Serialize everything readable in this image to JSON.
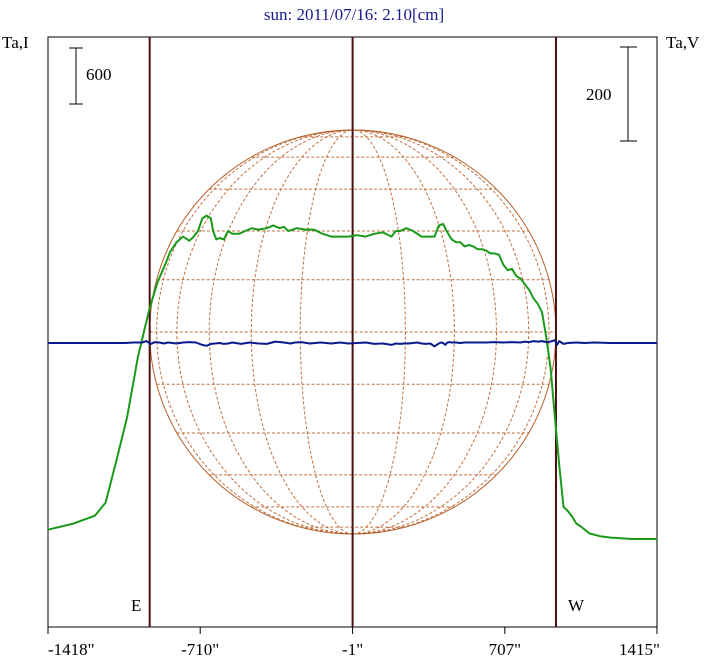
{
  "chart_data": {
    "type": "line",
    "title": "sun: 2011/07/16: 2.10[cm]",
    "ylabel_left": "Ta,I",
    "ylabel_right": "Ta,V",
    "scale_left_label": "600",
    "scale_left_value": 600,
    "scale_right_label": "200",
    "scale_right_value": 200,
    "limb_east_label": "E",
    "limb_west_label": "W",
    "xlim": [
      -1418,
      1415
    ],
    "x_ticks": [
      {
        "value": -1418,
        "label": "-1418\""
      },
      {
        "value": -710,
        "label": "-710\""
      },
      {
        "value": -1,
        "label": "-1\""
      },
      {
        "value": 707,
        "label": "707\""
      },
      {
        "value": 1415,
        "label": "1415\""
      }
    ],
    "vertical_lines_arcsec": [
      -945,
      -1,
      945
    ],
    "solar_radius_arcsec": 945,
    "colors": {
      "intensity": "#1a9a1a",
      "polarization": "#0a1a8c",
      "globe": "#b8602a",
      "markers": "#4a1010",
      "title": "#1a1a8c"
    },
    "series": [
      {
        "name": "Ta,I",
        "unit": "Ta",
        "x": [
          -1418,
          -1300,
          -1200,
          -1150,
          -1100,
          -1050,
          -1000,
          -970,
          -950,
          -930,
          -910,
          -890,
          -870,
          -850,
          -820,
          -790,
          -760,
          -740,
          -720,
          -700,
          -680,
          -660,
          -650,
          -635,
          -620,
          -600,
          -580,
          -560,
          -530,
          -500,
          -470,
          -440,
          -400,
          -370,
          -340,
          -320,
          -300,
          -260,
          -220,
          -180,
          -140,
          -100,
          -60,
          -20,
          20,
          60,
          100,
          140,
          180,
          200,
          220,
          250,
          280,
          320,
          360,
          380,
          400,
          420,
          440,
          460,
          480,
          500,
          520,
          540,
          560,
          580,
          600,
          620,
          640,
          660,
          680,
          700,
          720,
          740,
          760,
          780,
          800,
          820,
          840,
          860,
          880,
          900,
          920,
          940,
          960,
          980,
          1000,
          1020,
          1040,
          1060,
          1100,
          1150,
          1200,
          1300,
          1415
        ],
        "y": [
          -2000,
          -1935,
          -1850,
          -1710,
          -1260,
          -795,
          -150,
          135,
          330,
          490,
          640,
          750,
          855,
          975,
          1080,
          1140,
          1095,
          1140,
          1200,
          1335,
          1365,
          1335,
          1200,
          1110,
          1125,
          1110,
          1200,
          1170,
          1170,
          1200,
          1230,
          1215,
          1230,
          1260,
          1230,
          1245,
          1200,
          1230,
          1215,
          1215,
          1170,
          1140,
          1140,
          1140,
          1155,
          1140,
          1170,
          1185,
          1140,
          1200,
          1200,
          1230,
          1200,
          1140,
          1140,
          1140,
          1260,
          1275,
          1185,
          1110,
          1080,
          1080,
          1035,
          1050,
          1035,
          1005,
          1005,
          990,
          960,
          960,
          945,
          840,
          780,
          795,
          720,
          690,
          630,
          570,
          480,
          420,
          330,
          60,
          -270,
          -795,
          -1305,
          -1755,
          -1800,
          -1860,
          -1935,
          -1965,
          -2040,
          -2070,
          -2085,
          -2100,
          -2100
        ]
      },
      {
        "name": "Ta,V",
        "unit": "Ta",
        "x": [
          -1418,
          -1200,
          -1060,
          -1020,
          -980,
          -960,
          -940,
          -920,
          -900,
          -880,
          -860,
          -820,
          -790,
          -760,
          -730,
          -700,
          -680,
          -660,
          -640,
          -620,
          -600,
          -580,
          -560,
          -520,
          -480,
          -440,
          -400,
          -360,
          -320,
          -290,
          -270,
          -240,
          -200,
          -150,
          -100,
          -60,
          -20,
          20,
          60,
          100,
          140,
          180,
          200,
          220,
          240,
          260,
          280,
          300,
          320,
          340,
          360,
          380,
          400,
          410,
          420,
          430,
          440,
          450,
          460,
          480,
          500,
          520,
          540,
          580,
          620,
          660,
          700,
          740,
          780,
          800,
          820,
          840,
          860,
          880,
          900,
          920,
          940,
          950,
          960,
          980,
          1000,
          1040,
          1080,
          1120,
          1200,
          1300,
          1415
        ],
        "y": [
          0,
          0,
          0,
          5,
          5,
          20,
          -10,
          10,
          5,
          -5,
          5,
          -5,
          5,
          10,
          5,
          -20,
          -30,
          -10,
          -5,
          0,
          -10,
          -5,
          5,
          -10,
          5,
          -5,
          -10,
          15,
          5,
          -5,
          5,
          10,
          -5,
          5,
          -5,
          5,
          -5,
          0,
          5,
          -10,
          -5,
          -20,
          -5,
          -10,
          -5,
          -5,
          0,
          5,
          -5,
          -10,
          -5,
          -35,
          -5,
          5,
          0,
          -20,
          5,
          10,
          5,
          5,
          0,
          5,
          5,
          5,
          5,
          10,
          5,
          10,
          5,
          15,
          10,
          20,
          15,
          20,
          10,
          15,
          30,
          -20,
          20,
          -10,
          0,
          5,
          0,
          5,
          0,
          0,
          0
        ]
      }
    ]
  }
}
